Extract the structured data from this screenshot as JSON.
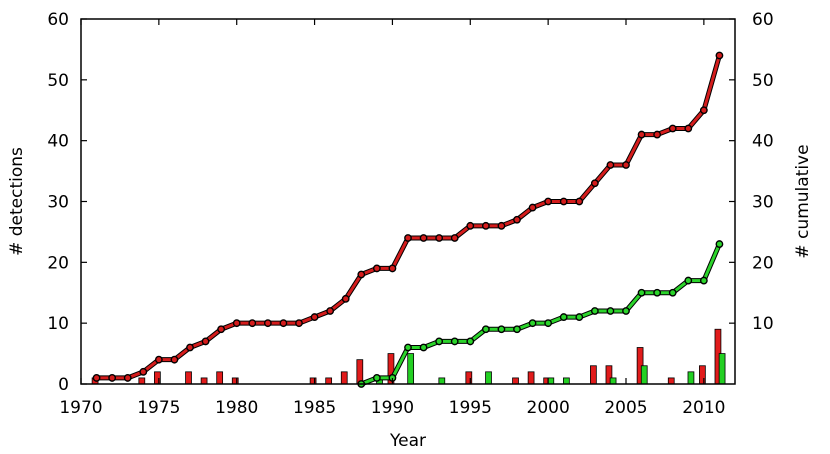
{
  "chart_data": {
    "type": "bar+line",
    "xlabel": "Year",
    "ylabel": "# detections",
    "y2label": "# cumulative",
    "xlim": [
      1970,
      2012
    ],
    "ylim": [
      0,
      60
    ],
    "y2lim": [
      0,
      60
    ],
    "xticks": [
      1970,
      1975,
      1980,
      1985,
      1990,
      1995,
      2000,
      2005,
      2010
    ],
    "yticks": [
      0,
      10,
      20,
      30,
      40,
      50,
      60
    ],
    "y2ticks": [
      10,
      20,
      30,
      40,
      50,
      60
    ],
    "grid": false,
    "series": [
      {
        "kind": "bar",
        "color": "#e11b1b",
        "points": [
          [
            1971,
            1
          ],
          [
            1974,
            1
          ],
          [
            1975,
            2
          ],
          [
            1977,
            2
          ],
          [
            1978,
            1
          ],
          [
            1979,
            2
          ],
          [
            1980,
            1
          ],
          [
            1985,
            1
          ],
          [
            1986,
            1
          ],
          [
            1987,
            2
          ],
          [
            1988,
            4
          ],
          [
            1990,
            5
          ],
          [
            1995,
            2
          ],
          [
            1998,
            1
          ],
          [
            1999,
            2
          ],
          [
            2000,
            1
          ],
          [
            2003,
            3
          ],
          [
            2004,
            3
          ],
          [
            2006,
            6
          ],
          [
            2008,
            1
          ],
          [
            2010,
            3
          ],
          [
            2011,
            9
          ]
        ]
      },
      {
        "kind": "bar",
        "color": "#23d023",
        "points": [
          [
            1989,
            1
          ],
          [
            1991,
            5
          ],
          [
            1993,
            1
          ],
          [
            1996,
            2
          ],
          [
            2000,
            1
          ],
          [
            2001,
            1
          ],
          [
            2004,
            1
          ],
          [
            2006,
            3
          ],
          [
            2009,
            2
          ],
          [
            2011,
            5
          ]
        ]
      },
      {
        "kind": "line",
        "color": "#d41c1c",
        "points": [
          [
            1971,
            1
          ],
          [
            1972,
            1
          ],
          [
            1973,
            1
          ],
          [
            1974,
            2
          ],
          [
            1975,
            4
          ],
          [
            1976,
            4
          ],
          [
            1977,
            6
          ],
          [
            1978,
            7
          ],
          [
            1979,
            9
          ],
          [
            1980,
            10
          ],
          [
            1981,
            10
          ],
          [
            1982,
            10
          ],
          [
            1983,
            10
          ],
          [
            1984,
            10
          ],
          [
            1985,
            11
          ],
          [
            1986,
            12
          ],
          [
            1987,
            14
          ],
          [
            1988,
            18
          ],
          [
            1989,
            19
          ],
          [
            1990,
            19
          ],
          [
            1991,
            24
          ],
          [
            1992,
            24
          ],
          [
            1993,
            24
          ],
          [
            1994,
            24
          ],
          [
            1995,
            26
          ],
          [
            1996,
            26
          ],
          [
            1997,
            26
          ],
          [
            1998,
            27
          ],
          [
            1999,
            29
          ],
          [
            2000,
            30
          ],
          [
            2001,
            30
          ],
          [
            2002,
            30
          ],
          [
            2003,
            33
          ],
          [
            2004,
            36
          ],
          [
            2005,
            36
          ],
          [
            2006,
            41
          ],
          [
            2007,
            41
          ],
          [
            2008,
            42
          ],
          [
            2009,
            42
          ],
          [
            2010,
            45
          ],
          [
            2011,
            54
          ]
        ]
      },
      {
        "kind": "line",
        "color": "#2bd42b",
        "points": [
          [
            1988,
            0
          ],
          [
            1989,
            1
          ],
          [
            1990,
            1
          ],
          [
            1991,
            6
          ],
          [
            1992,
            6
          ],
          [
            1993,
            7
          ],
          [
            1994,
            7
          ],
          [
            1995,
            7
          ],
          [
            1996,
            9
          ],
          [
            1997,
            9
          ],
          [
            1998,
            9
          ],
          [
            1999,
            10
          ],
          [
            2000,
            10
          ],
          [
            2001,
            11
          ],
          [
            2002,
            11
          ],
          [
            2003,
            12
          ],
          [
            2004,
            12
          ],
          [
            2005,
            12
          ],
          [
            2006,
            15
          ],
          [
            2007,
            15
          ],
          [
            2008,
            15
          ],
          [
            2009,
            17
          ],
          [
            2010,
            17
          ],
          [
            2011,
            23
          ]
        ]
      }
    ]
  }
}
